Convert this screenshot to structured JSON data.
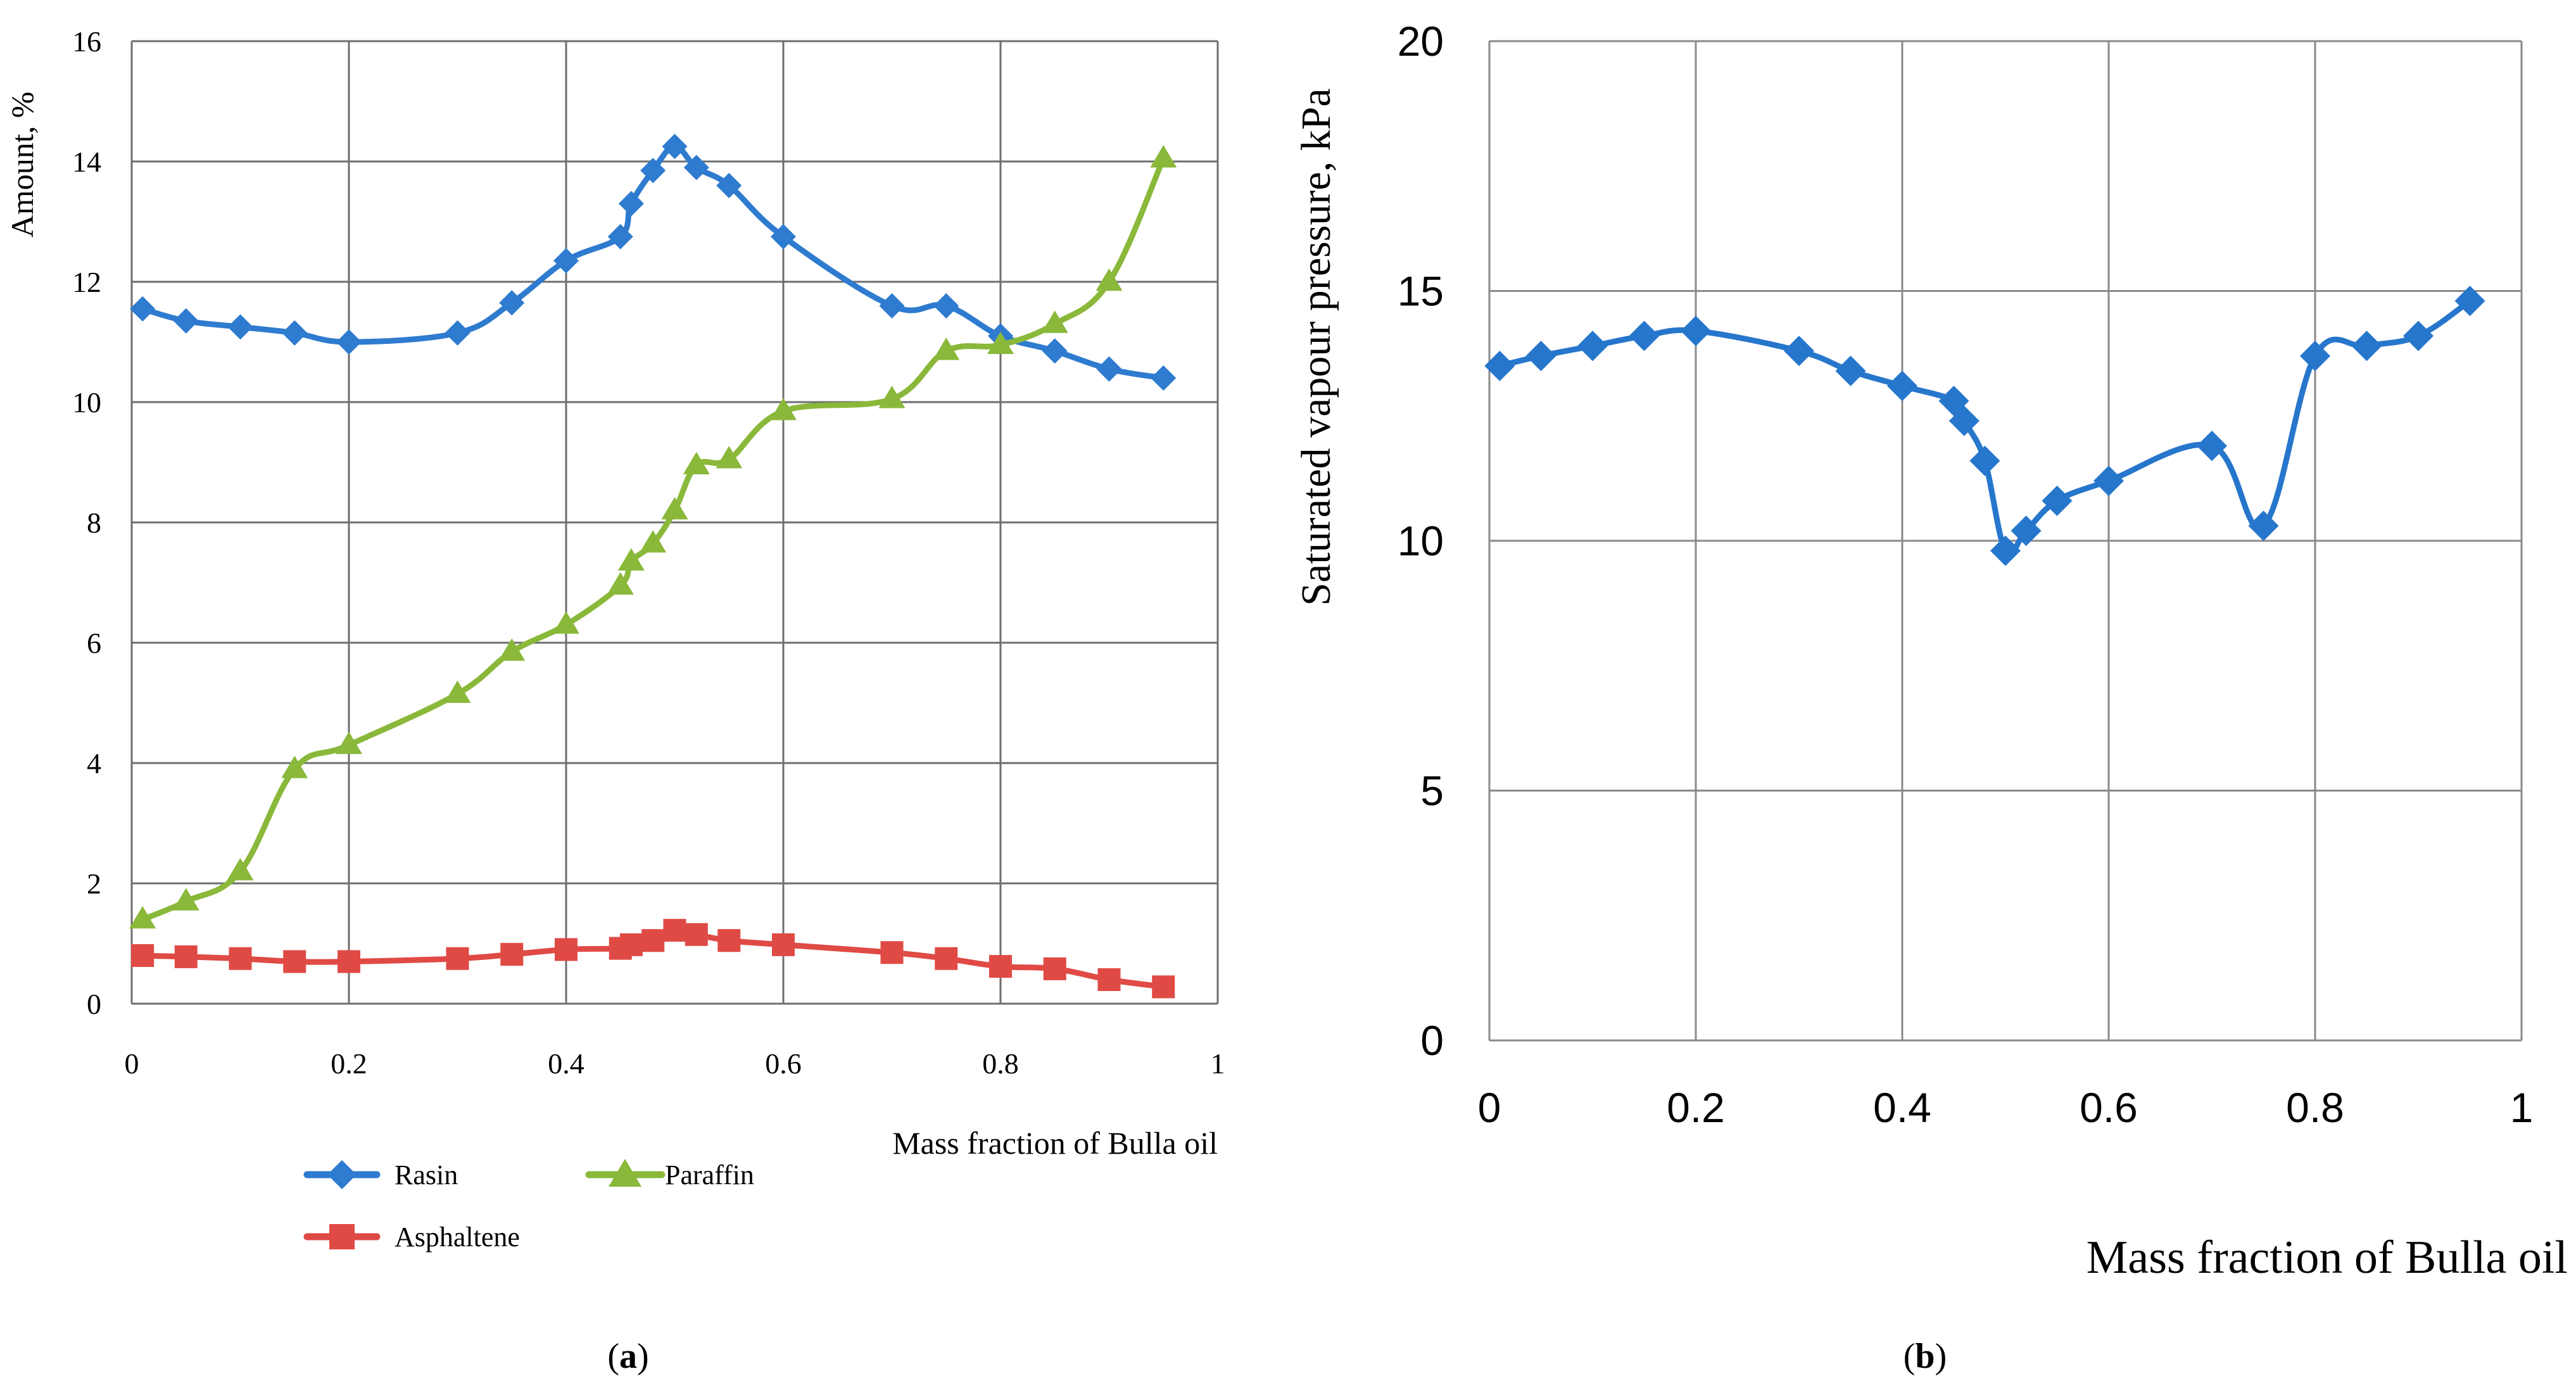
{
  "chart_data": [
    {
      "type": "line",
      "panel_label": "a",
      "title": "",
      "xlabel": "Mass fraction of Bulla oil",
      "ylabel": "Amount, %",
      "xlim": [
        0,
        1
      ],
      "ylim": [
        0,
        16
      ],
      "xticks": [
        0,
        0.2,
        0.4,
        0.6,
        0.8,
        1
      ],
      "xtick_labels": [
        "0",
        "0.2",
        "0.4",
        "0.6",
        "0.8",
        "1"
      ],
      "yticks": [
        0,
        2,
        4,
        6,
        8,
        10,
        12,
        14,
        16
      ],
      "ytick_labels": [
        "0",
        "2",
        "4",
        "6",
        "8",
        "10",
        "12",
        "14",
        "16"
      ],
      "grid": true,
      "legend_position": "bottom",
      "series": [
        {
          "name": "Rasin",
          "color": "#2e7bcf",
          "marker": "diamond",
          "x": [
            0.01,
            0.05,
            0.1,
            0.15,
            0.2,
            0.3,
            0.35,
            0.4,
            0.45,
            0.46,
            0.48,
            0.5,
            0.52,
            0.55,
            0.6,
            0.7,
            0.75,
            0.8,
            0.85,
            0.9,
            0.95
          ],
          "y": [
            11.55,
            11.35,
            11.25,
            11.15,
            11.0,
            11.15,
            11.65,
            12.35,
            12.75,
            13.3,
            13.85,
            14.25,
            13.9,
            13.6,
            12.75,
            11.6,
            11.6,
            11.1,
            10.85,
            10.55,
            10.4
          ]
        },
        {
          "name": "Paraffin",
          "color": "#8ab83a",
          "marker": "triangle",
          "x": [
            0.01,
            0.05,
            0.1,
            0.15,
            0.2,
            0.3,
            0.35,
            0.4,
            0.45,
            0.46,
            0.48,
            0.5,
            0.52,
            0.55,
            0.6,
            0.7,
            0.75,
            0.8,
            0.85,
            0.9,
            0.95
          ],
          "y": [
            1.4,
            1.7,
            2.2,
            3.9,
            4.3,
            5.15,
            5.85,
            6.3,
            6.95,
            7.35,
            7.65,
            8.2,
            8.95,
            9.05,
            9.85,
            10.05,
            10.85,
            10.95,
            11.3,
            12.0,
            14.05
          ]
        },
        {
          "name": "Asphaltene",
          "color": "#e04a45",
          "marker": "square",
          "x": [
            0.01,
            0.05,
            0.1,
            0.15,
            0.2,
            0.3,
            0.35,
            0.4,
            0.45,
            0.46,
            0.48,
            0.5,
            0.52,
            0.55,
            0.6,
            0.7,
            0.75,
            0.8,
            0.85,
            0.9,
            0.95
          ],
          "y": [
            0.8,
            0.78,
            0.75,
            0.7,
            0.7,
            0.75,
            0.82,
            0.9,
            0.92,
            0.98,
            1.05,
            1.22,
            1.15,
            1.05,
            0.98,
            0.85,
            0.75,
            0.62,
            0.58,
            0.4,
            0.28
          ]
        }
      ]
    },
    {
      "type": "line",
      "panel_label": "b",
      "title": "",
      "xlabel": "Mass fraction of Bulla oil",
      "ylabel": "Saturated vapour pressure, kPa",
      "xlim": [
        0,
        1
      ],
      "ylim": [
        0,
        20
      ],
      "xticks": [
        0,
        0.2,
        0.4,
        0.6,
        0.8,
        1
      ],
      "xtick_labels": [
        "0",
        "0.2",
        "0.4",
        "0.6",
        "0.8",
        "1"
      ],
      "yticks": [
        0,
        5,
        10,
        15,
        20
      ],
      "ytick_labels": [
        "0",
        "5",
        "10",
        "15",
        "20"
      ],
      "grid": true,
      "series": [
        {
          "name": "Saturated vapour pressure",
          "color": "#2676cc",
          "marker": "diamond",
          "x": [
            0.01,
            0.05,
            0.1,
            0.15,
            0.2,
            0.3,
            0.35,
            0.4,
            0.45,
            0.46,
            0.48,
            0.5,
            0.52,
            0.55,
            0.6,
            0.7,
            0.75,
            0.8,
            0.85,
            0.9,
            0.95
          ],
          "y": [
            13.5,
            13.7,
            13.9,
            14.1,
            14.2,
            13.8,
            13.4,
            13.1,
            12.8,
            12.4,
            11.6,
            9.8,
            10.2,
            10.8,
            11.2,
            11.9,
            10.3,
            13.7,
            13.9,
            14.1,
            14.8
          ]
        }
      ]
    }
  ]
}
